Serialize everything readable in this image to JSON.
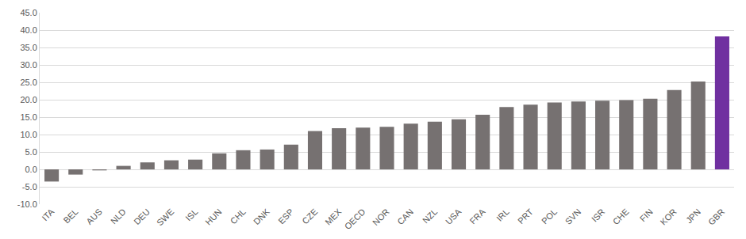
{
  "chart_data": {
    "type": "bar",
    "categories": [
      "ITA",
      "BEL",
      "AUS",
      "NLD",
      "DEU",
      "SWE",
      "ISL",
      "HUN",
      "CHL",
      "DNK",
      "ESP",
      "CZE",
      "MEX",
      "OECD",
      "NOR",
      "CAN",
      "NZL",
      "USA",
      "FRA",
      "IRL",
      "PRT",
      "POL",
      "SVN",
      "ISR",
      "CHE",
      "FIN",
      "KOR",
      "JPN",
      "GBR"
    ],
    "values": [
      -3.5,
      -1.5,
      -0.3,
      1.0,
      2.0,
      2.6,
      2.8,
      4.6,
      5.5,
      5.7,
      7.1,
      11.0,
      11.8,
      12.0,
      12.2,
      13.1,
      13.7,
      14.4,
      15.7,
      17.9,
      18.6,
      19.2,
      19.5,
      19.7,
      19.9,
      20.3,
      22.8,
      25.2,
      38.2
    ],
    "colors": [
      "#767171",
      "#767171",
      "#767171",
      "#767171",
      "#767171",
      "#767171",
      "#767171",
      "#767171",
      "#767171",
      "#767171",
      "#767171",
      "#767171",
      "#767171",
      "#767171",
      "#767171",
      "#767171",
      "#767171",
      "#767171",
      "#767171",
      "#767171",
      "#767171",
      "#767171",
      "#767171",
      "#767171",
      "#767171",
      "#767171",
      "#767171",
      "#767171",
      "#7030a0"
    ],
    "ylim": [
      -10,
      45
    ],
    "yticks": [
      {
        "value": -10,
        "label": "-10.0"
      },
      {
        "value": -5,
        "label": "-5.0"
      },
      {
        "value": 0,
        "label": "0.0"
      },
      {
        "value": 5,
        "label": "5.0"
      },
      {
        "value": 10,
        "label": "10.0"
      },
      {
        "value": 15,
        "label": "15.0"
      },
      {
        "value": 20,
        "label": "20.0"
      },
      {
        "value": 25,
        "label": "25.0"
      },
      {
        "value": 30,
        "label": "30.0"
      },
      {
        "value": 35,
        "label": "35.0"
      },
      {
        "value": 40,
        "label": "40.0"
      },
      {
        "value": 45,
        "label": "45.0"
      }
    ],
    "grid": true
  }
}
